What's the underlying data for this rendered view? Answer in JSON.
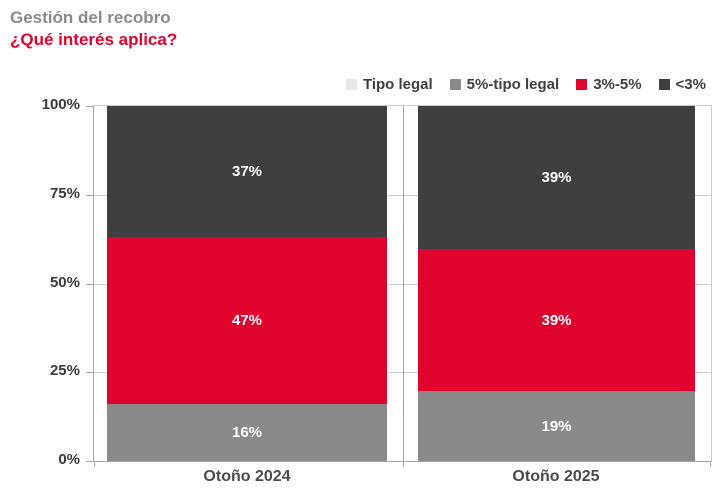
{
  "header": {
    "title": "Gestión del recobro",
    "subtitle": "¿Qué interés aplica?"
  },
  "legend": {
    "position": "top-right",
    "items": [
      {
        "label": "Tipo legal",
        "color": "#e7e7e7"
      },
      {
        "label": "5%-tipo legal",
        "color": "#8a8a8a"
      },
      {
        "label": "3%-5%",
        "color": "#e0032e"
      },
      {
        "label": "<3%",
        "color": "#3f3f3f"
      }
    ]
  },
  "y_axis": {
    "ticks": [
      {
        "label": "100%",
        "value": 100
      },
      {
        "label": "75%",
        "value": 75
      },
      {
        "label": "50%",
        "value": 50
      },
      {
        "label": "25%",
        "value": 25
      },
      {
        "label": "0%",
        "value": 0
      }
    ]
  },
  "chart_data": {
    "type": "bar",
    "stacked": true,
    "orientation": "vertical",
    "title": "Gestión del recobro",
    "subtitle": "¿Qué interés aplica?",
    "xlabel": "",
    "ylabel": "",
    "ylim": [
      0,
      100
    ],
    "grid": true,
    "legend_position": "top-right",
    "categories": [
      "Otoño 2024",
      "Otoño 2025"
    ],
    "series": [
      {
        "name": "Tipo legal",
        "color": "#e7e7e7",
        "values": [
          0,
          0
        ],
        "labels": [
          "",
          ""
        ]
      },
      {
        "name": "5%-tipo legal",
        "color": "#8a8a8a",
        "values": [
          16,
          19
        ],
        "labels": [
          "16%",
          "19%"
        ]
      },
      {
        "name": "3%-5%",
        "color": "#e0032e",
        "values": [
          47,
          39
        ],
        "labels": [
          "47%",
          "39%"
        ]
      },
      {
        "name": "<3%",
        "color": "#3f3f3f",
        "values": [
          37,
          39
        ],
        "labels": [
          "37%",
          "39%"
        ]
      }
    ]
  }
}
